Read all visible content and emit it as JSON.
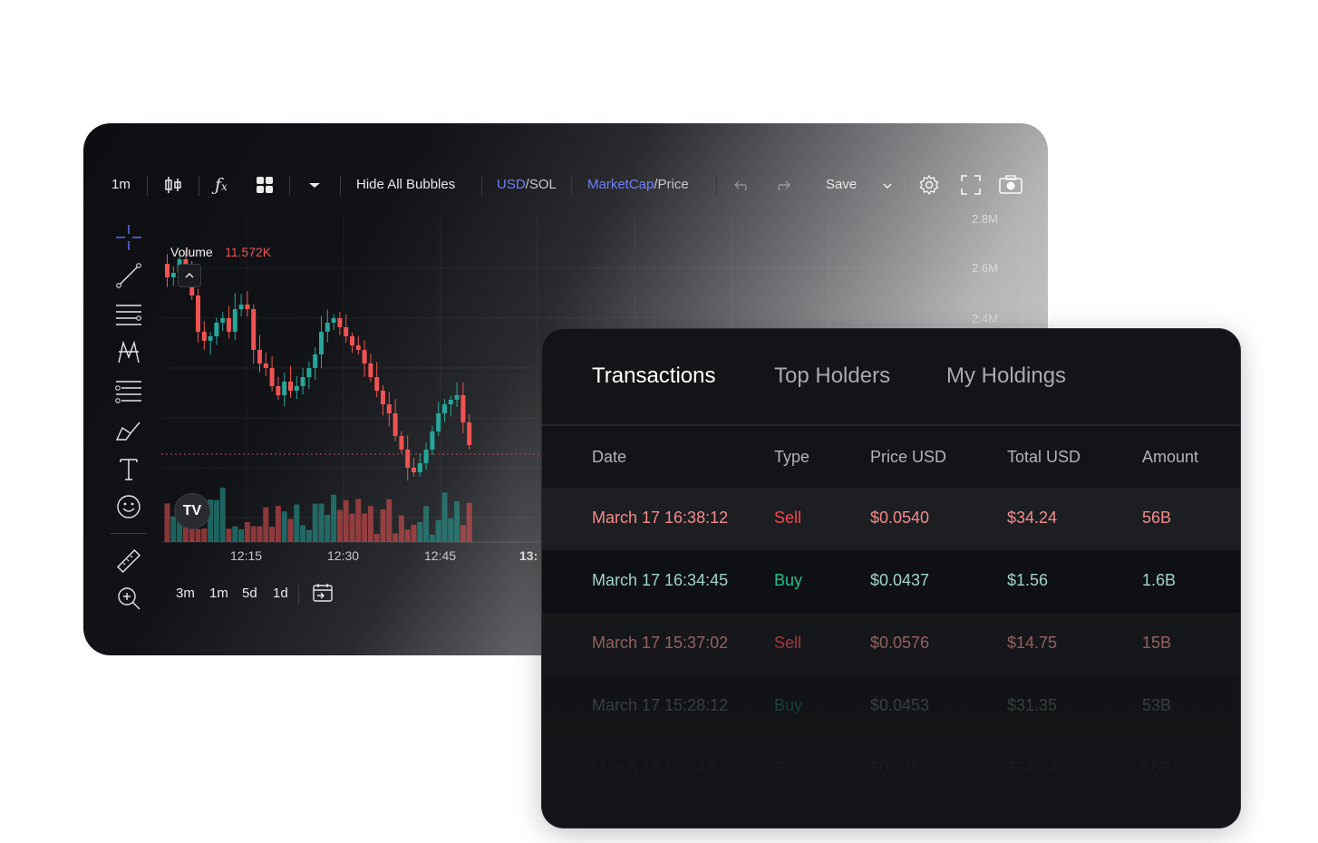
{
  "colors": {
    "accent": "#6f7ff7",
    "up": "#26a69a",
    "down": "#ef5353",
    "sell": "#f0494e",
    "buy": "#1fbf8f"
  },
  "toolbar": {
    "interval": "1m",
    "candle_icon": "candlestick-icon",
    "indicators_icon": "fx-icon",
    "layout_icon": "grid-icon",
    "dropdown_icon": "caret-down-icon",
    "hide_bubbles": "Hide All Bubbles",
    "currency_a": "USD",
    "currency_sep": "/",
    "currency_b": "SOL",
    "metric_a": "MarketCap",
    "metric_sep": "/",
    "metric_b": "Price",
    "undo_icon": "undo-icon",
    "redo_icon": "redo-icon",
    "save": "Save",
    "settings_icon": "gear-icon",
    "fullscreen_icon": "fullscreen-icon",
    "snapshot_icon": "camera-icon"
  },
  "left_tools": [
    "crosshair-icon",
    "trendline-icon",
    "horizontal-lines-icon",
    "pattern-icon",
    "fib-icon",
    "brush-icon",
    "text-icon",
    "emoji-icon",
    "ruler-icon",
    "zoom-in-icon"
  ],
  "chart": {
    "volume_label": "Volume",
    "volume_value": "11.572K",
    "y_ticks": [
      "2.8M",
      "2.6M",
      "2.4M"
    ],
    "x_ticks": [
      "12:15",
      "12:30",
      "12:45",
      "13:"
    ],
    "collapse_icon": "chevron-up-icon",
    "logo_text": "TV"
  },
  "chart_data": {
    "type": "bar",
    "title": "",
    "categories": [
      "12:15",
      "12:30",
      "12:45",
      "13:"
    ],
    "series": [],
    "ylabel": "",
    "xlabel": ""
  },
  "range_bar": {
    "items": [
      "3m",
      "1m",
      "5d",
      "1d"
    ],
    "goto_icon": "calendar-goto-icon"
  },
  "panel": {
    "tabs": [
      "Transactions",
      "Top Holders",
      "My Holdings"
    ],
    "columns": [
      "Date",
      "Type",
      "Price USD",
      "Total USD",
      "Amount"
    ],
    "rows": [
      {
        "date": "March 17 16:38:12",
        "type": "Sell",
        "price": "$0.0540",
        "total": "$34.24",
        "amount": "56B"
      },
      {
        "date": "March 17 16:34:45",
        "type": "Buy",
        "price": "$0.0437",
        "total": "$1.56",
        "amount": "1.6B"
      },
      {
        "date": "March 17 15:37:02",
        "type": "Sell",
        "price": "$0.0576",
        "total": "$14.75",
        "amount": "15B"
      },
      {
        "date": "March 17 15:28:12",
        "type": "Buy",
        "price": "$0.0453",
        "total": "$31.35",
        "amount": "53B"
      },
      {
        "date": "March 17 15:24:52",
        "type": "Buy",
        "price": "$0.0352",
        "total": "$34.24",
        "amount": "56B"
      }
    ]
  }
}
